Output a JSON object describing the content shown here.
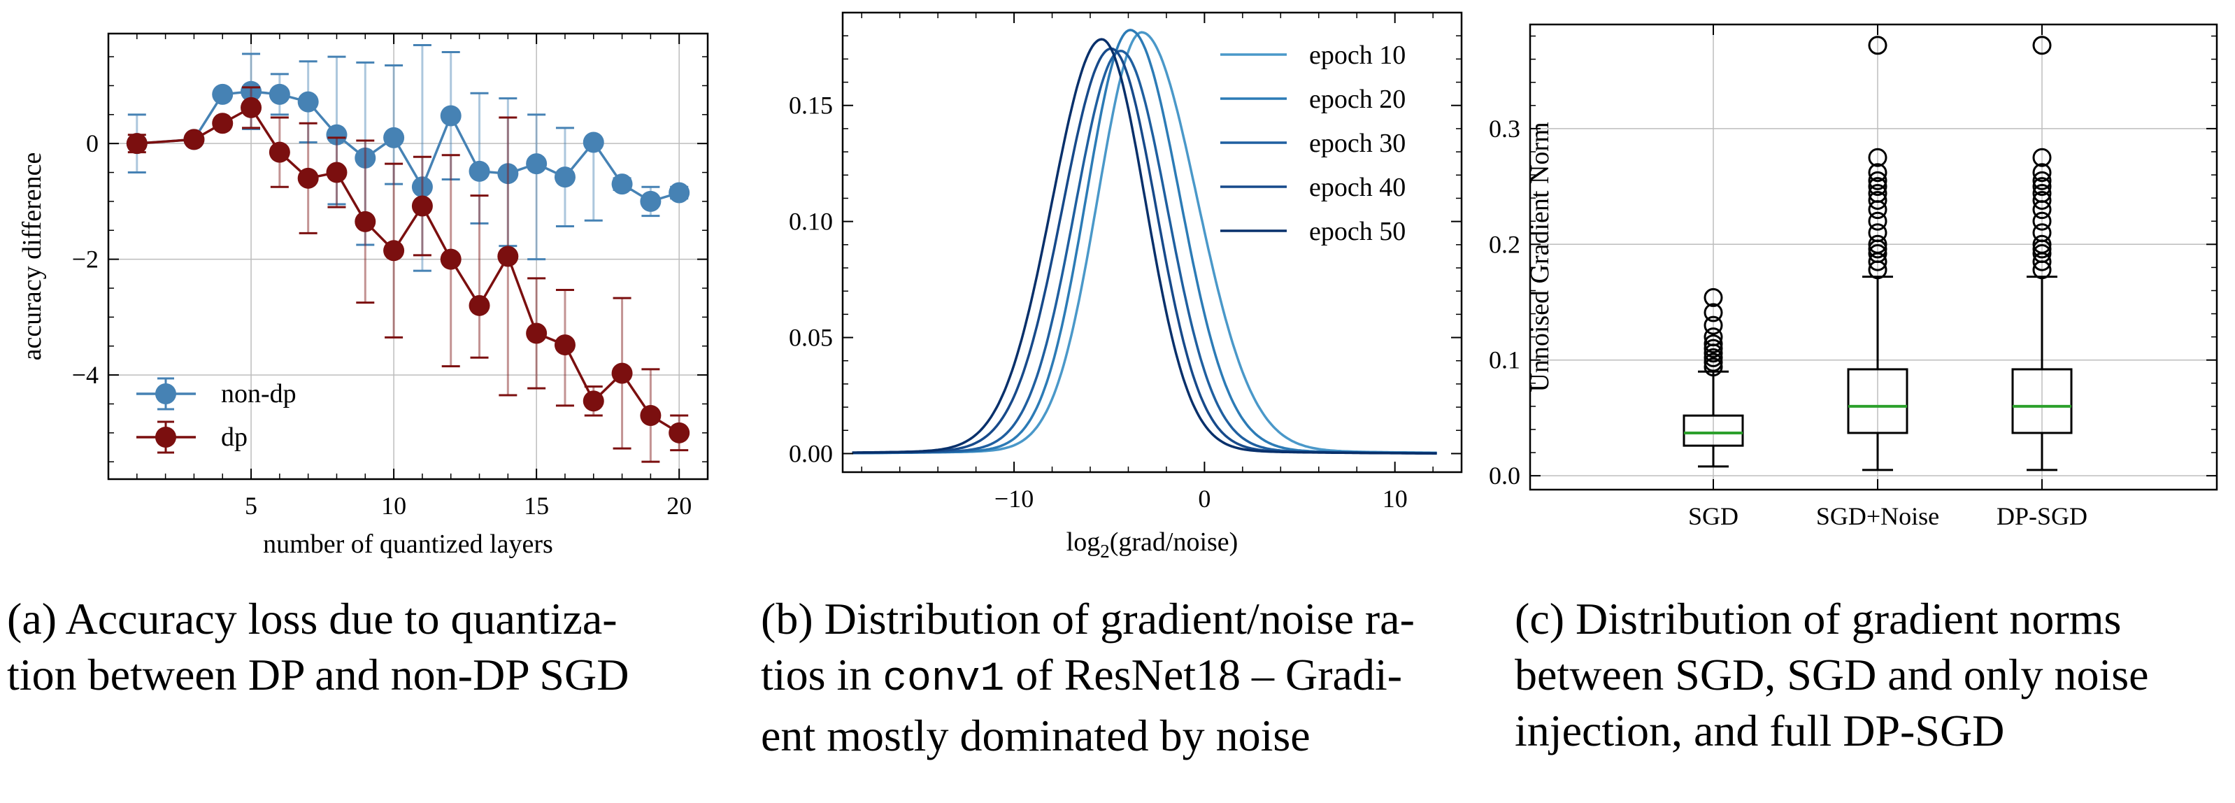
{
  "chart_data": [
    {
      "type": "line",
      "xlabel": "number of quantized layers",
      "ylabel": "accuracy difference",
      "xlim": [
        0,
        21
      ],
      "ylim": [
        -5.8,
        1.9
      ],
      "xticks": [
        5,
        10,
        15,
        20
      ],
      "yticks": [
        -4,
        -2,
        0
      ],
      "grid": true,
      "legend": "lower-left",
      "series": [
        {
          "name": "non-dp",
          "color": "#4682b4",
          "x": [
            1,
            3,
            4,
            5,
            6,
            7,
            8,
            9,
            10,
            11,
            12,
            13,
            14,
            15,
            16,
            17,
            18,
            19,
            20
          ],
          "y": [
            0.0,
            0.07,
            0.85,
            0.9,
            0.85,
            0.72,
            0.15,
            -0.25,
            0.1,
            -0.75,
            0.48,
            -0.48,
            -0.52,
            -0.35,
            -0.58,
            0.02,
            -0.7,
            -1.0,
            -0.85
          ],
          "err_low": [
            0.5,
            0.0,
            0.0,
            0.65,
            0.35,
            0.7,
            1.2,
            1.5,
            0.8,
            1.45,
            1.1,
            0.9,
            1.25,
            1.65,
            0.85,
            1.35,
            0.1,
            0.25,
            0.1
          ],
          "err_high": [
            0.5,
            0.0,
            0.0,
            0.65,
            0.35,
            0.7,
            1.35,
            1.65,
            1.25,
            2.45,
            1.1,
            1.35,
            1.3,
            0.85,
            0.85,
            0.0,
            0.1,
            0.25,
            0.1
          ]
        },
        {
          "name": "dp",
          "color": "#7b0f0f",
          "x": [
            1,
            3,
            4,
            5,
            6,
            7,
            8,
            9,
            10,
            11,
            12,
            13,
            14,
            15,
            16,
            17,
            18,
            19,
            20
          ],
          "y": [
            0.0,
            0.07,
            0.35,
            0.62,
            -0.15,
            -0.6,
            -0.5,
            -1.35,
            -1.85,
            -1.08,
            -2.0,
            -2.8,
            -1.95,
            -3.28,
            -3.48,
            -4.45,
            -3.97,
            -4.7,
            -5.0
          ],
          "err_low": [
            0.15,
            0.0,
            0.0,
            0.35,
            0.6,
            0.95,
            0.6,
            1.4,
            1.5,
            0.85,
            1.85,
            0.9,
            2.4,
            0.95,
            1.05,
            0.25,
            1.3,
            0.8,
            0.3
          ],
          "err_high": [
            0.15,
            0.0,
            0.0,
            0.35,
            0.6,
            0.95,
            0.6,
            1.4,
            1.5,
            0.85,
            1.8,
            1.9,
            2.4,
            0.95,
            0.95,
            0.25,
            1.3,
            0.8,
            0.3
          ]
        }
      ]
    },
    {
      "type": "line",
      "xlabel": "log2(grad/noise)",
      "ylabel": "",
      "xlim": [
        -19,
        13.5
      ],
      "ylim": [
        -0.008,
        0.19
      ],
      "xticks": [
        -10,
        0,
        10
      ],
      "yticks": [
        0.0,
        0.05,
        0.1,
        0.15
      ],
      "grid": false,
      "legend": "top-right",
      "series": [
        {
          "name": "epoch 10",
          "color": "#4a98c9",
          "mu": -3.3,
          "sl": 2.3,
          "sr": 2.9,
          "amp": 0.18
        },
        {
          "name": "epoch 20",
          "color": "#2c7bb6",
          "mu": -3.9,
          "sl": 2.3,
          "sr": 2.6,
          "amp": 0.181
        },
        {
          "name": "epoch 30",
          "color": "#1f5fa0",
          "mu": -4.4,
          "sl": 2.4,
          "sr": 2.45,
          "amp": 0.172
        },
        {
          "name": "epoch 40",
          "color": "#174a8b",
          "mu": -4.9,
          "sl": 2.55,
          "sr": 2.35,
          "amp": 0.173
        },
        {
          "name": "epoch 50",
          "color": "#08306b",
          "mu": -5.4,
          "sl": 2.6,
          "sr": 2.3,
          "amp": 0.177
        }
      ]
    },
    {
      "type": "box",
      "ylabel": "Unnoised Gradient Norm",
      "ylim": [
        -0.012,
        0.39
      ],
      "yticks": [
        0.0,
        0.1,
        0.2,
        0.3
      ],
      "grid": true,
      "categories": [
        "SGD",
        "SGD+Noise",
        "DP-SGD"
      ],
      "median_color": "#2ca02c",
      "boxes": [
        {
          "q1": 0.026,
          "median": 0.037,
          "q3": 0.052,
          "whislo": 0.008,
          "whishi": 0.09,
          "fliers": [
            0.094,
            0.098,
            0.102,
            0.106,
            0.11,
            0.114,
            0.12,
            0.13,
            0.141,
            0.154
          ]
        },
        {
          "q1": 0.037,
          "median": 0.06,
          "q3": 0.092,
          "whislo": 0.005,
          "whishi": 0.172,
          "fliers": [
            0.178,
            0.185,
            0.192,
            0.196,
            0.2,
            0.21,
            0.22,
            0.23,
            0.238,
            0.244,
            0.25,
            0.255,
            0.262,
            0.275,
            0.372
          ]
        },
        {
          "q1": 0.037,
          "median": 0.06,
          "q3": 0.092,
          "whislo": 0.005,
          "whishi": 0.172,
          "fliers": [
            0.178,
            0.185,
            0.192,
            0.196,
            0.2,
            0.21,
            0.22,
            0.23,
            0.238,
            0.244,
            0.25,
            0.255,
            0.262,
            0.275,
            0.372
          ]
        }
      ]
    }
  ],
  "captions": {
    "a": {
      "line1": "(a) Accuracy loss due to quantiza-",
      "line2": "tion between DP and non-DP SGD"
    },
    "b": {
      "line1": "(b) Distribution of gradient/noise ra-",
      "line2_pre": "tios in ",
      "line2_code": "conv1",
      "line2_post": " of ResNet18 – Gradi-",
      "line3": "ent mostly dominated by noise"
    },
    "c": {
      "line1": "(c) Distribution of gradient norms",
      "line2": "between SGD, SGD and only noise",
      "line3": "injection, and full DP-SGD"
    }
  }
}
